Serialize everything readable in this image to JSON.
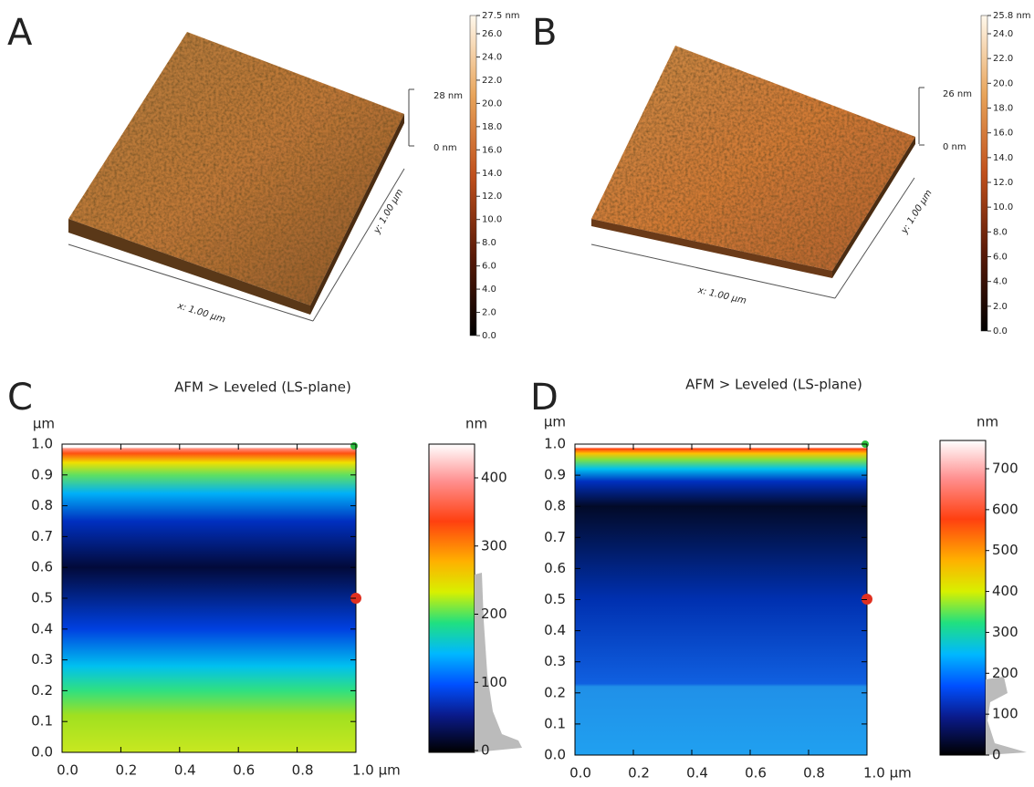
{
  "panels": [
    {
      "label": "A",
      "scale_ticks": [
        "27.5 nm",
        "26.0",
        "24.0",
        "22.0",
        "20.0",
        "18.0",
        "16.0",
        "14.0",
        "12.0",
        "10.0",
        "8.0",
        "6.0",
        "4.0",
        "2.0",
        "0.0"
      ],
      "height_bar": [
        "28 nm",
        "0 nm"
      ],
      "x_axis": "x: 1.00 µm",
      "y_axis": "y: 1.00 µm"
    },
    {
      "label": "B",
      "scale_ticks": [
        "25.8 nm",
        "24.0",
        "22.0",
        "20.0",
        "18.0",
        "16.0",
        "14.0",
        "12.0",
        "10.0",
        "8.0",
        "6.0",
        "4.0",
        "2.0",
        "0.0"
      ],
      "height_bar": [
        "26 nm",
        "0 nm"
      ],
      "x_axis": "x: 1.00 µm",
      "y_axis": "y: 1.00 µm"
    },
    {
      "label": "C",
      "title": "AFM > Leveled (LS-plane)",
      "y_unit": "µm",
      "yticks": [
        "0.0",
        "0.1",
        "0.2",
        "0.3",
        "0.4",
        "0.5",
        "0.6",
        "0.7",
        "0.8",
        "0.9",
        "1.0"
      ],
      "xticks": [
        "0.0",
        "0.2",
        "0.4",
        "0.6",
        "0.8",
        "1.0 µm"
      ],
      "colorbar_unit": "nm",
      "colorbar_ticks": [
        "0",
        "100",
        "200",
        "300",
        "400"
      ]
    },
    {
      "label": "D",
      "title": "AFM > Leveled (LS-plane)",
      "y_unit": "µm",
      "yticks": [
        "0.0",
        "0.1",
        "0.2",
        "0.3",
        "0.4",
        "0.5",
        "0.6",
        "0.7",
        "0.8",
        "0.9",
        "1.0"
      ],
      "xticks": [
        "0.0",
        "0.2",
        "0.4",
        "0.6",
        "0.8",
        "1.0 µm"
      ],
      "colorbar_unit": "nm",
      "colorbar_ticks": [
        "0",
        "100",
        "200",
        "300",
        "400",
        "500",
        "600",
        "700"
      ]
    }
  ]
}
